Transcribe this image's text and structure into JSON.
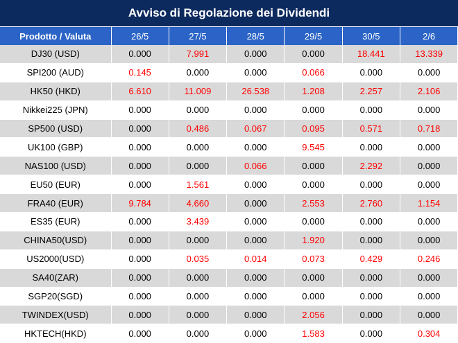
{
  "title": "Avviso di Regolazione dei Dividendi",
  "colors": {
    "header_bg": "#0d2a5e",
    "col_header_bg": "#2b64c6",
    "row_alt": "#d9d9d9",
    "nonzero": "#ff0000"
  },
  "columns": [
    "Prodotto / Valuta",
    "26/5",
    "27/5",
    "28/5",
    "29/5",
    "30/5",
    "2/6"
  ],
  "rows": [
    {
      "product": "DJ30 (USD)",
      "values": [
        "0.000",
        "7.991",
        "0.000",
        "0.000",
        "18.441",
        "13.339"
      ]
    },
    {
      "product": "SPI200 (AUD)",
      "values": [
        "0.145",
        "0.000",
        "0.000",
        "0.066",
        "0.000",
        "0.000"
      ]
    },
    {
      "product": "HK50 (HKD)",
      "values": [
        "6.610",
        "11.009",
        "26.538",
        "1.208",
        "2.257",
        "2.106"
      ]
    },
    {
      "product": "Nikkei225 (JPN)",
      "values": [
        "0.000",
        "0.000",
        "0.000",
        "0.000",
        "0.000",
        "0.000"
      ]
    },
    {
      "product": "SP500 (USD)",
      "values": [
        "0.000",
        "0.486",
        "0.067",
        "0.095",
        "0.571",
        "0.718"
      ]
    },
    {
      "product": "UK100 (GBP)",
      "values": [
        "0.000",
        "0.000",
        "0.000",
        "9.545",
        "0.000",
        "0.000"
      ]
    },
    {
      "product": "NAS100 (USD)",
      "values": [
        "0.000",
        "0.000",
        "0.066",
        "0.000",
        "2.292",
        "0.000"
      ]
    },
    {
      "product": "EU50 (EUR)",
      "values": [
        "0.000",
        "1.561",
        "0.000",
        "0.000",
        "0.000",
        "0.000"
      ]
    },
    {
      "product": "FRA40 (EUR)",
      "values": [
        "9.784",
        "4.660",
        "0.000",
        "2.553",
        "2.760",
        "1.154"
      ]
    },
    {
      "product": "ES35 (EUR)",
      "values": [
        "0.000",
        "3.439",
        "0.000",
        "0.000",
        "0.000",
        "0.000"
      ]
    },
    {
      "product": "CHINA50(USD)",
      "values": [
        "0.000",
        "0.000",
        "0.000",
        "1.920",
        "0.000",
        "0.000"
      ]
    },
    {
      "product": "US2000(USD)",
      "values": [
        "0.000",
        "0.035",
        "0.014",
        "0.073",
        "0.429",
        "0.246"
      ]
    },
    {
      "product": "SA40(ZAR)",
      "values": [
        "0.000",
        "0.000",
        "0.000",
        "0.000",
        "0.000",
        "0.000"
      ]
    },
    {
      "product": "SGP20(SGD)",
      "values": [
        "0.000",
        "0.000",
        "0.000",
        "0.000",
        "0.000",
        "0.000"
      ]
    },
    {
      "product": "TWINDEX(USD)",
      "values": [
        "0.000",
        "0.000",
        "0.000",
        "2.056",
        "0.000",
        "0.000"
      ]
    },
    {
      "product": "HKTECH(HKD)",
      "values": [
        "0.000",
        "0.000",
        "0.000",
        "1.583",
        "0.000",
        "0.304"
      ]
    }
  ]
}
